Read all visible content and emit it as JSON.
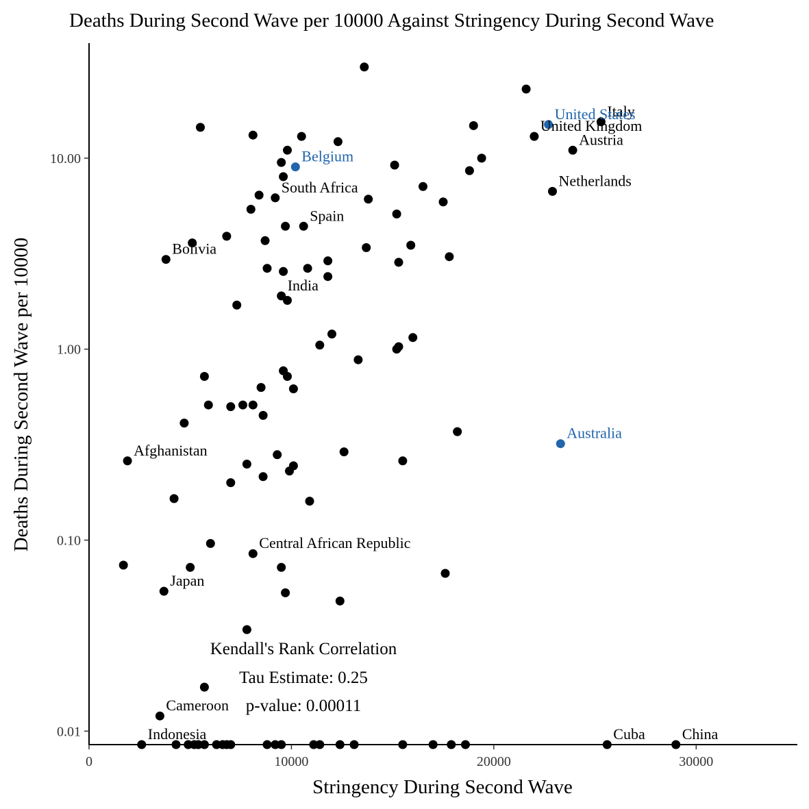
{
  "chart_data": {
    "type": "scatter",
    "title": "Deaths During Second Wave per 10000 Against Stringency During Second Wave",
    "xlabel": "Stringency During Second Wave",
    "ylabel": "Deaths During Second Wave per 10000",
    "x_scale": "linear",
    "y_scale": "log10",
    "xlim": [
      0,
      35000
    ],
    "ylim": [
      0.0085,
      40
    ],
    "x_ticks": [
      {
        "value": 0,
        "label": "0"
      },
      {
        "value": 10000,
        "label": "10000"
      },
      {
        "value": 20000,
        "label": "20000"
      },
      {
        "value": 30000,
        "label": "30000"
      }
    ],
    "y_ticks": [
      {
        "value": 0.01,
        "label": "0.01"
      },
      {
        "value": 0.1,
        "label": "0.10"
      },
      {
        "value": 1,
        "label": "1.00"
      },
      {
        "value": 10,
        "label": "10.00"
      }
    ],
    "grid": false,
    "colors": {
      "default": "#000000",
      "highlight": "#2166ac"
    },
    "annotation_lines": [
      "Kendall's Rank Correlation",
      "Tau Estimate: 0.25",
      "p-value: 0.00011"
    ],
    "labeled_points": [
      {
        "label": "Italy",
        "x": 25300,
        "y": 15.5,
        "highlight": false
      },
      {
        "label": "United States",
        "x": 22700,
        "y": 15.0,
        "highlight": true
      },
      {
        "label": "United Kingdom",
        "x": 22000,
        "y": 13.0,
        "highlight": false
      },
      {
        "label": "Austria",
        "x": 23900,
        "y": 11.0,
        "highlight": false
      },
      {
        "label": "Belgium",
        "x": 10200,
        "y": 9.0,
        "highlight": true
      },
      {
        "label": "Netherlands",
        "x": 22900,
        "y": 6.7,
        "highlight": false
      },
      {
        "label": "South Africa",
        "x": 9200,
        "y": 6.2,
        "highlight": false
      },
      {
        "label": "Spain",
        "x": 10600,
        "y": 4.4,
        "highlight": false
      },
      {
        "label": "Bolivia",
        "x": 3800,
        "y": 2.95,
        "highlight": false
      },
      {
        "label": "India",
        "x": 9500,
        "y": 1.9,
        "highlight": false
      },
      {
        "label": "Australia",
        "x": 23300,
        "y": 0.32,
        "highlight": true
      },
      {
        "label": "Afghanistan",
        "x": 1900,
        "y": 0.26,
        "highlight": false
      },
      {
        "label": "Central African Republic",
        "x": 8100,
        "y": 0.085,
        "highlight": false
      },
      {
        "label": "Japan",
        "x": 3700,
        "y": 0.054,
        "highlight": false
      },
      {
        "label": "Cameroon",
        "x": 3500,
        "y": 0.012,
        "highlight": false
      },
      {
        "label": "Indonesia",
        "x": 2600,
        "y": 0.0085,
        "highlight": false
      },
      {
        "label": "Cuba",
        "x": 25600,
        "y": 0.0085,
        "highlight": false
      },
      {
        "label": "China",
        "x": 29000,
        "y": 0.0085,
        "highlight": false
      }
    ],
    "points": [
      [
        13600,
        30
      ],
      [
        21600,
        23
      ],
      [
        5500,
        14.5
      ],
      [
        8100,
        13.2
      ],
      [
        10500,
        13.0
      ],
      [
        12300,
        12.2
      ],
      [
        19000,
        14.8
      ],
      [
        9800,
        11.0
      ],
      [
        9500,
        9.5
      ],
      [
        15100,
        9.2
      ],
      [
        19400,
        10.0
      ],
      [
        18800,
        8.6
      ],
      [
        9600,
        8.0
      ],
      [
        16500,
        7.1
      ],
      [
        8400,
        6.4
      ],
      [
        13800,
        6.1
      ],
      [
        17500,
        5.9
      ],
      [
        8000,
        5.4
      ],
      [
        15200,
        5.1
      ],
      [
        9700,
        4.4
      ],
      [
        6800,
        3.9
      ],
      [
        5100,
        3.6
      ],
      [
        8700,
        3.7
      ],
      [
        13700,
        3.4
      ],
      [
        15900,
        3.5
      ],
      [
        17800,
        3.05
      ],
      [
        11800,
        2.9
      ],
      [
        15300,
        2.85
      ],
      [
        8800,
        2.65
      ],
      [
        10800,
        2.65
      ],
      [
        9600,
        2.55
      ],
      [
        11800,
        2.4
      ],
      [
        9800,
        1.8
      ],
      [
        7300,
        1.7
      ],
      [
        12000,
        1.2
      ],
      [
        16000,
        1.15
      ],
      [
        11400,
        1.05
      ],
      [
        15200,
        1.0
      ],
      [
        15300,
        1.03
      ],
      [
        13300,
        0.88
      ],
      [
        9600,
        0.77
      ],
      [
        5700,
        0.72
      ],
      [
        9800,
        0.72
      ],
      [
        8500,
        0.63
      ],
      [
        10100,
        0.62
      ],
      [
        5900,
        0.51
      ],
      [
        7000,
        0.5
      ],
      [
        7600,
        0.51
      ],
      [
        8100,
        0.51
      ],
      [
        8600,
        0.45
      ],
      [
        4700,
        0.41
      ],
      [
        18200,
        0.37
      ],
      [
        12600,
        0.29
      ],
      [
        9300,
        0.28
      ],
      [
        15500,
        0.26
      ],
      [
        7800,
        0.25
      ],
      [
        10100,
        0.245
      ],
      [
        9900,
        0.23
      ],
      [
        8600,
        0.215
      ],
      [
        7000,
        0.2
      ],
      [
        4200,
        0.165
      ],
      [
        10900,
        0.16
      ],
      [
        6000,
        0.096
      ],
      [
        1700,
        0.074
      ],
      [
        5000,
        0.072
      ],
      [
        9500,
        0.072
      ],
      [
        17600,
        0.067
      ],
      [
        9700,
        0.053
      ],
      [
        12400,
        0.048
      ],
      [
        7800,
        0.034
      ],
      [
        5700,
        0.017
      ],
      [
        4300,
        0.0085
      ],
      [
        4900,
        0.0085
      ],
      [
        5200,
        0.0085
      ],
      [
        5400,
        0.0085
      ],
      [
        5700,
        0.0085
      ],
      [
        6300,
        0.0085
      ],
      [
        6600,
        0.0085
      ],
      [
        6800,
        0.0085
      ],
      [
        7000,
        0.0085
      ],
      [
        8800,
        0.0085
      ],
      [
        9200,
        0.0085
      ],
      [
        9500,
        0.0085
      ],
      [
        11100,
        0.0085
      ],
      [
        11400,
        0.0085
      ],
      [
        12400,
        0.0085
      ],
      [
        13100,
        0.0085
      ],
      [
        15500,
        0.0085
      ],
      [
        17000,
        0.0085
      ],
      [
        17900,
        0.0085
      ],
      [
        18600,
        0.0085
      ]
    ]
  }
}
